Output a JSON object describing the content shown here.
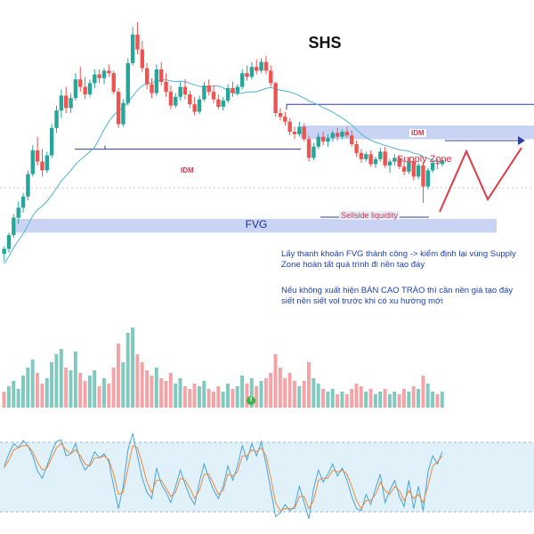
{
  "header": {
    "symbol": "SHS"
  },
  "zones": {
    "fvg_label": "FVG",
    "supply_label": "Supply Zone",
    "idm_left_label": "IDM",
    "idm_right_label": "IDM",
    "sellside_label": "Sellside liquidity"
  },
  "annotation": {
    "note_1": "Lấy thanh khoản FVG thành công -> kiểm định lại vùng Supply Zone hoàn tất quá trình đi nền tạo đáy",
    "note_2": "Nếu không xuất hiện BÁN CAO TRÀO thì cần nền giá tạo đáy siết nền siết vol trước khi có xu hướng mới"
  },
  "indicator": {
    "icon_letter": "f"
  },
  "colors": {
    "up": "#26a69a",
    "down": "#ef5350",
    "vol_up": "#7fc9bf",
    "vol_down": "#f4a4a6",
    "ma": "#5fb8d8",
    "zone_fill": "#c9d3f4",
    "idm_line": "#2d3f9a",
    "projection": "#e03a45",
    "rsi_band": "#e0f1fa",
    "rsi_fast": "#4aa3d6",
    "rsi_slow": "#f08a3a"
  },
  "chart_data": {
    "type": "candlestick",
    "title": "SHS",
    "ylim": [
      1,
      21
    ],
    "zones": {
      "fvg": [
        3.9,
        5.0
      ],
      "supply": [
        11.4,
        12.5
      ],
      "idm_left": 10.6,
      "idm_right": 14.2,
      "sellside_liquidity": 5.0
    },
    "candles": [
      [
        2.2,
        2.8,
        1.6,
        2.6
      ],
      [
        2.6,
        3.9,
        2.3,
        3.7
      ],
      [
        3.7,
        5.4,
        3.5,
        5.1
      ],
      [
        5.1,
        6.4,
        4.6,
        5.9
      ],
      [
        5.9,
        7.1,
        5.5,
        6.8
      ],
      [
        6.8,
        8.9,
        6.5,
        8.6
      ],
      [
        8.6,
        10.9,
        8.4,
        10.5
      ],
      [
        10.5,
        11.6,
        9.3,
        9.6
      ],
      [
        9.6,
        10.6,
        8.4,
        8.9
      ],
      [
        8.9,
        10.4,
        8.7,
        10.1
      ],
      [
        10.1,
        12.6,
        9.9,
        12.3
      ],
      [
        12.3,
        14.1,
        11.9,
        13.7
      ],
      [
        13.7,
        15.4,
        13.1,
        14.9
      ],
      [
        14.9,
        15.6,
        13.5,
        13.9
      ],
      [
        13.9,
        15.1,
        13.5,
        14.7
      ],
      [
        14.7,
        16.7,
        14.5,
        16.2
      ],
      [
        16.2,
        17.2,
        15.2,
        15.6
      ],
      [
        15.6,
        16.4,
        14.6,
        15.0
      ],
      [
        15.0,
        16.2,
        14.8,
        15.9
      ],
      [
        15.9,
        17.0,
        15.5,
        16.6
      ],
      [
        16.6,
        17.0,
        15.9,
        16.3
      ],
      [
        16.3,
        17.1,
        15.8,
        16.9
      ],
      [
        16.9,
        17.4,
        16.4,
        16.7
      ],
      [
        16.7,
        16.9,
        15.0,
        15.2
      ],
      [
        15.2,
        15.5,
        12.3,
        12.6
      ],
      [
        12.6,
        14.6,
        12.4,
        14.3
      ],
      [
        14.3,
        17.9,
        14.1,
        17.5
      ],
      [
        17.5,
        20.4,
        17.3,
        19.8
      ],
      [
        19.8,
        20.8,
        18.2,
        18.6
      ],
      [
        18.6,
        19.3,
        16.8,
        17.1
      ],
      [
        17.1,
        17.5,
        15.4,
        15.8
      ],
      [
        15.8,
        16.3,
        14.7,
        15.1
      ],
      [
        15.1,
        17.4,
        14.9,
        17.0
      ],
      [
        17.0,
        17.6,
        15.7,
        16.0
      ],
      [
        16.0,
        16.7,
        14.8,
        15.2
      ],
      [
        15.2,
        15.7,
        13.8,
        14.1
      ],
      [
        14.1,
        15.1,
        13.9,
        14.8
      ],
      [
        14.8,
        16.0,
        14.5,
        15.6
      ],
      [
        15.6,
        16.2,
        14.6,
        15.0
      ],
      [
        15.0,
        15.3,
        13.9,
        14.2
      ],
      [
        14.2,
        14.8,
        13.3,
        13.6
      ],
      [
        13.6,
        14.9,
        13.4,
        14.6
      ],
      [
        14.6,
        16.0,
        14.4,
        15.7
      ],
      [
        15.7,
        16.2,
        14.9,
        15.2
      ],
      [
        15.2,
        15.7,
        14.3,
        14.6
      ],
      [
        14.6,
        15.0,
        13.8,
        14.0
      ],
      [
        14.0,
        14.8,
        13.7,
        14.5
      ],
      [
        14.5,
        15.8,
        14.3,
        15.5
      ],
      [
        15.5,
        16.0,
        14.8,
        15.1
      ],
      [
        15.1,
        15.8,
        14.9,
        15.6
      ],
      [
        15.6,
        17.0,
        15.4,
        16.7
      ],
      [
        16.7,
        17.3,
        16.1,
        16.4
      ],
      [
        16.4,
        17.6,
        16.2,
        17.2
      ],
      [
        17.2,
        17.8,
        16.6,
        16.9
      ],
      [
        16.9,
        17.9,
        16.7,
        17.6
      ],
      [
        17.6,
        18.1,
        16.6,
        16.9
      ],
      [
        16.9,
        17.3,
        15.6,
        15.9
      ],
      [
        15.9,
        16.0,
        13.2,
        13.5
      ],
      [
        13.5,
        13.9,
        12.9,
        13.2
      ],
      [
        13.2,
        13.6,
        12.5,
        12.8
      ],
      [
        12.8,
        13.1,
        11.7,
        12.0
      ],
      [
        12.0,
        12.4,
        11.4,
        11.8
      ],
      [
        11.8,
        12.8,
        11.6,
        12.4
      ],
      [
        12.4,
        12.7,
        11.2,
        11.4
      ],
      [
        11.4,
        11.7,
        9.6,
        9.9
      ],
      [
        9.9,
        11.1,
        9.7,
        10.8
      ],
      [
        10.8,
        11.9,
        10.6,
        11.6
      ],
      [
        11.6,
        12.0,
        10.9,
        11.2
      ],
      [
        11.2,
        11.8,
        10.8,
        11.5
      ],
      [
        11.5,
        12.1,
        11.2,
        11.9
      ],
      [
        11.9,
        12.3,
        11.3,
        11.6
      ],
      [
        11.6,
        12.2,
        11.4,
        12.0
      ],
      [
        12.0,
        12.4,
        11.5,
        11.7
      ],
      [
        11.7,
        12.1,
        10.8,
        11.0
      ],
      [
        11.0,
        11.3,
        10.0,
        10.3
      ],
      [
        10.3,
        10.6,
        9.5,
        9.8
      ],
      [
        9.8,
        10.4,
        9.6,
        10.2
      ],
      [
        10.2,
        10.5,
        9.2,
        9.4
      ],
      [
        9.4,
        10.0,
        9.1,
        9.8
      ],
      [
        9.8,
        10.7,
        9.6,
        10.4
      ],
      [
        10.4,
        10.8,
        9.1,
        9.3
      ],
      [
        9.3,
        9.8,
        8.7,
        9.6
      ],
      [
        9.6,
        10.2,
        9.3,
        9.9
      ],
      [
        9.9,
        10.1,
        9.0,
        9.2
      ],
      [
        9.2,
        9.7,
        8.5,
        8.8
      ],
      [
        8.8,
        9.9,
        8.6,
        9.6
      ],
      [
        9.6,
        9.9,
        8.1,
        8.4
      ],
      [
        8.4,
        9.5,
        8.2,
        9.3
      ],
      [
        9.3,
        9.6,
        6.3,
        7.6
      ],
      [
        7.6,
        9.1,
        7.4,
        8.9
      ],
      [
        8.9,
        9.7,
        8.7,
        9.5
      ],
      [
        9.5,
        9.8,
        9.0,
        9.4
      ],
      [
        9.4,
        9.9,
        9.2,
        9.7
      ]
    ],
    "volume": [
      [
        12,
        "d"
      ],
      [
        16,
        "u"
      ],
      [
        20,
        "u"
      ],
      [
        14,
        "u"
      ],
      [
        24,
        "u"
      ],
      [
        30,
        "u"
      ],
      [
        36,
        "u"
      ],
      [
        26,
        "d"
      ],
      [
        18,
        "d"
      ],
      [
        22,
        "u"
      ],
      [
        34,
        "u"
      ],
      [
        40,
        "u"
      ],
      [
        44,
        "u"
      ],
      [
        30,
        "d"
      ],
      [
        28,
        "u"
      ],
      [
        42,
        "u"
      ],
      [
        26,
        "d"
      ],
      [
        20,
        "d"
      ],
      [
        24,
        "u"
      ],
      [
        28,
        "u"
      ],
      [
        16,
        "d"
      ],
      [
        22,
        "u"
      ],
      [
        18,
        "d"
      ],
      [
        30,
        "d"
      ],
      [
        48,
        "d"
      ],
      [
        34,
        "u"
      ],
      [
        56,
        "u"
      ],
      [
        60,
        "u"
      ],
      [
        40,
        "d"
      ],
      [
        34,
        "d"
      ],
      [
        28,
        "d"
      ],
      [
        24,
        "d"
      ],
      [
        30,
        "u"
      ],
      [
        22,
        "d"
      ],
      [
        20,
        "d"
      ],
      [
        26,
        "d"
      ],
      [
        18,
        "u"
      ],
      [
        22,
        "u"
      ],
      [
        16,
        "d"
      ],
      [
        14,
        "d"
      ],
      [
        18,
        "d"
      ],
      [
        16,
        "u"
      ],
      [
        20,
        "u"
      ],
      [
        14,
        "d"
      ],
      [
        12,
        "d"
      ],
      [
        16,
        "d"
      ],
      [
        12,
        "u"
      ],
      [
        18,
        "u"
      ],
      [
        14,
        "d"
      ],
      [
        16,
        "u"
      ],
      [
        24,
        "u"
      ],
      [
        18,
        "d"
      ],
      [
        22,
        "u"
      ],
      [
        16,
        "d"
      ],
      [
        20,
        "u"
      ],
      [
        22,
        "d"
      ],
      [
        26,
        "d"
      ],
      [
        40,
        "d"
      ],
      [
        30,
        "d"
      ],
      [
        22,
        "d"
      ],
      [
        26,
        "d"
      ],
      [
        20,
        "d"
      ],
      [
        16,
        "u"
      ],
      [
        20,
        "d"
      ],
      [
        34,
        "d"
      ],
      [
        22,
        "u"
      ],
      [
        18,
        "u"
      ],
      [
        14,
        "d"
      ],
      [
        12,
        "u"
      ],
      [
        14,
        "u"
      ],
      [
        10,
        "d"
      ],
      [
        12,
        "u"
      ],
      [
        10,
        "d"
      ],
      [
        14,
        "d"
      ],
      [
        18,
        "d"
      ],
      [
        16,
        "d"
      ],
      [
        12,
        "u"
      ],
      [
        14,
        "d"
      ],
      [
        10,
        "u"
      ],
      [
        12,
        "u"
      ],
      [
        14,
        "d"
      ],
      [
        10,
        "u"
      ],
      [
        12,
        "u"
      ],
      [
        10,
        "d"
      ],
      [
        14,
        "d"
      ],
      [
        12,
        "u"
      ],
      [
        16,
        "d"
      ],
      [
        14,
        "u"
      ],
      [
        24,
        "d"
      ],
      [
        18,
        "u"
      ],
      [
        12,
        "u"
      ],
      [
        10,
        "d"
      ],
      [
        12,
        "u"
      ]
    ],
    "rsi_fast": [
      60,
      72,
      82,
      78,
      85,
      80,
      70,
      55,
      48,
      60,
      74,
      84,
      86,
      70,
      72,
      82,
      66,
      56,
      62,
      74,
      68,
      72,
      64,
      40,
      18,
      40,
      76,
      92,
      70,
      48,
      34,
      28,
      58,
      42,
      34,
      24,
      40,
      56,
      42,
      30,
      22,
      44,
      62,
      48,
      36,
      28,
      40,
      60,
      46,
      60,
      80,
      66,
      82,
      70,
      84,
      62,
      36,
      10,
      14,
      22,
      16,
      20,
      40,
      24,
      8,
      38,
      56,
      44,
      52,
      62,
      50,
      58,
      46,
      30,
      18,
      16,
      32,
      22,
      38,
      52,
      24,
      36,
      46,
      30,
      20,
      46,
      18,
      40,
      16,
      54,
      70,
      62,
      74
    ],
    "rsi_slow": [
      58,
      66,
      76,
      78,
      80,
      80,
      74,
      64,
      56,
      58,
      68,
      78,
      82,
      76,
      72,
      76,
      70,
      62,
      60,
      68,
      68,
      70,
      66,
      52,
      32,
      34,
      58,
      80,
      78,
      62,
      44,
      34,
      46,
      46,
      38,
      30,
      34,
      48,
      46,
      38,
      28,
      36,
      52,
      52,
      42,
      32,
      36,
      52,
      50,
      54,
      70,
      70,
      76,
      74,
      78,
      70,
      48,
      24,
      16,
      18,
      18,
      18,
      30,
      30,
      18,
      26,
      46,
      48,
      48,
      56,
      54,
      56,
      52,
      40,
      26,
      18,
      26,
      26,
      32,
      44,
      36,
      32,
      40,
      36,
      26,
      36,
      28,
      32,
      24,
      40,
      60,
      64,
      70
    ]
  }
}
